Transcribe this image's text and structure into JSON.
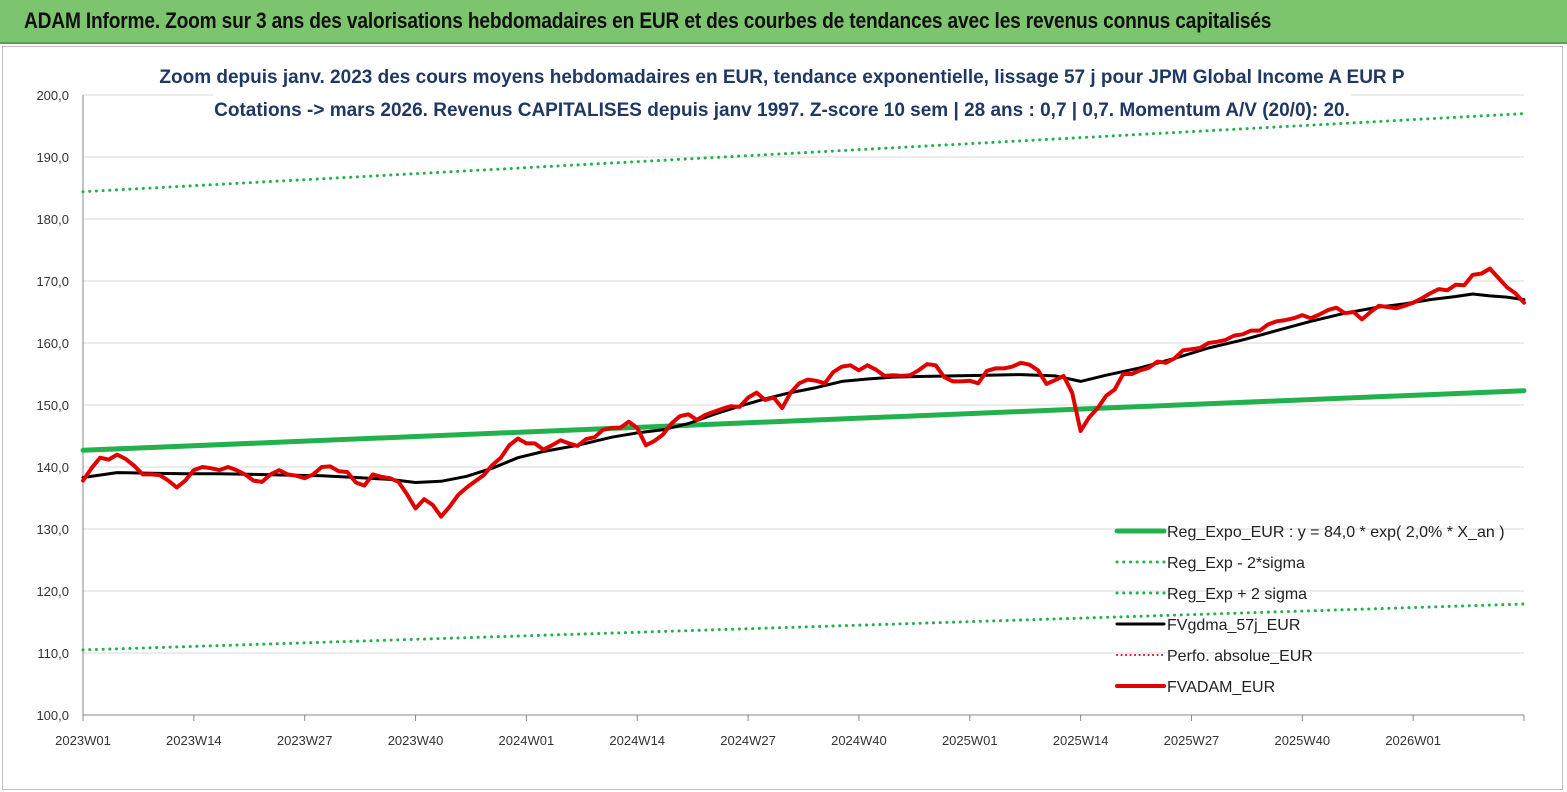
{
  "header": {
    "banner_title": "ADAM Informe. Zoom sur 3 ans des valorisations hebdomadaires en EUR et des courbes de tendances avec les revenus connus capitalisés"
  },
  "colors": {
    "banner_bg": "#7dc46f",
    "reg_expo": "#22b14c",
    "band": "#22b14c",
    "fvgdma": "#000000",
    "perfo": "#e00000",
    "fvadam": "#e00000",
    "title_text": "#1f3864"
  },
  "chart_data": {
    "type": "line",
    "title": "Zoom depuis janv. 2023 des cours moyens hebdomadaires en EUR, tendance exponentielle, lissage 57 j pour JPM Global Income A EUR P",
    "subtitle": "Cotations -> mars 2026. Revenus CAPITALISES depuis janv 1997. Z-score 10 sem | 28 ans : 0,7 | 0,7. Momentum A/V (20/0): 20.",
    "xlabel": "",
    "ylabel": "",
    "ylim": [
      100,
      200
    ],
    "yticks": [
      "100,0",
      "110,0",
      "120,0",
      "130,0",
      "140,0",
      "150,0",
      "160,0",
      "170,0",
      "180,0",
      "190,0",
      "200,0"
    ],
    "x_range_weeks": [
      0,
      169
    ],
    "x_ticks": [
      {
        "label": "2023W01",
        "week": 0
      },
      {
        "label": "2023W14",
        "week": 13
      },
      {
        "label": "2023W27",
        "week": 26
      },
      {
        "label": "2023W40",
        "week": 39
      },
      {
        "label": "2024W01",
        "week": 52
      },
      {
        "label": "2024W14",
        "week": 65
      },
      {
        "label": "2024W27",
        "week": 78
      },
      {
        "label": "2024W40",
        "week": 91
      },
      {
        "label": "2025W01",
        "week": 104
      },
      {
        "label": "2025W14",
        "week": 117
      },
      {
        "label": "2025W27",
        "week": 130
      },
      {
        "label": "2025W40",
        "week": 143
      },
      {
        "label": "2026W01",
        "week": 156
      }
    ],
    "grid": "horizontal",
    "legend_position": "bottom-right",
    "series": [
      {
        "name": "Reg_Expo_EUR : y = 84,0 * exp( 2,0% *  X_an )",
        "style": "solid",
        "color": "#22b14c",
        "width": 5,
        "points": [
          [
            0,
            142.7
          ],
          [
            169,
            152.3
          ]
        ]
      },
      {
        "name": "Reg_Exp - 2*sigma",
        "style": "dotted",
        "color": "#22b14c",
        "width": 3,
        "points": [
          [
            0,
            110.5
          ],
          [
            169,
            117.9
          ]
        ]
      },
      {
        "name": "Reg_Exp + 2 sigma",
        "style": "dotted",
        "color": "#22b14c",
        "width": 3,
        "points": [
          [
            0,
            184.4
          ],
          [
            169,
            197.0
          ]
        ]
      },
      {
        "name": "FVgdma_57j_EUR",
        "style": "solid",
        "color": "#000000",
        "width": 3,
        "points": [
          [
            0,
            138.3
          ],
          [
            4,
            139.1
          ],
          [
            8,
            139.0
          ],
          [
            12,
            138.9
          ],
          [
            16,
            138.9
          ],
          [
            20,
            138.8
          ],
          [
            24,
            138.7
          ],
          [
            28,
            138.6
          ],
          [
            32,
            138.3
          ],
          [
            36,
            138.0
          ],
          [
            39,
            137.5
          ],
          [
            42,
            137.7
          ],
          [
            45,
            138.5
          ],
          [
            48,
            139.8
          ],
          [
            51,
            141.5
          ],
          [
            54,
            142.5
          ],
          [
            58,
            143.5
          ],
          [
            62,
            144.8
          ],
          [
            65,
            145.5
          ],
          [
            68,
            146.0
          ],
          [
            71,
            147.0
          ],
          [
            74,
            148.5
          ],
          [
            77,
            149.8
          ],
          [
            80,
            151.0
          ],
          [
            83,
            152.0
          ],
          [
            86,
            152.8
          ],
          [
            89,
            153.8
          ],
          [
            92,
            154.2
          ],
          [
            95,
            154.5
          ],
          [
            98,
            154.6
          ],
          [
            102,
            154.7
          ],
          [
            106,
            154.8
          ],
          [
            110,
            154.9
          ],
          [
            114,
            154.7
          ],
          [
            117,
            153.8
          ],
          [
            120,
            154.8
          ],
          [
            124,
            156.0
          ],
          [
            128,
            157.5
          ],
          [
            132,
            159.2
          ],
          [
            136,
            160.5
          ],
          [
            140,
            162.0
          ],
          [
            144,
            163.5
          ],
          [
            148,
            164.8
          ],
          [
            152,
            165.8
          ],
          [
            155,
            166.3
          ],
          [
            158,
            167.0
          ],
          [
            161,
            167.5
          ],
          [
            163,
            167.9
          ],
          [
            165,
            167.6
          ],
          [
            167,
            167.4
          ],
          [
            169,
            167.0
          ]
        ]
      },
      {
        "name": "Perfo. absolue_EUR",
        "style": "dotted",
        "color": "#e00000",
        "width": 2,
        "points": []
      },
      {
        "name": "FVADAM_EUR",
        "style": "solid",
        "color": "#e00000",
        "width": 4,
        "points": [
          [
            0,
            137.8
          ],
          [
            1,
            139.8
          ],
          [
            2,
            141.5
          ],
          [
            3,
            141.2
          ],
          [
            4,
            142.0
          ],
          [
            5,
            141.3
          ],
          [
            6,
            140.2
          ],
          [
            7,
            138.8
          ],
          [
            8,
            138.8
          ],
          [
            9,
            138.7
          ],
          [
            10,
            137.8
          ],
          [
            11,
            136.7
          ],
          [
            12,
            137.8
          ],
          [
            13,
            139.5
          ],
          [
            14,
            140.0
          ],
          [
            15,
            139.8
          ],
          [
            16,
            139.5
          ],
          [
            17,
            140.0
          ],
          [
            18,
            139.5
          ],
          [
            19,
            138.8
          ],
          [
            20,
            137.8
          ],
          [
            21,
            137.6
          ],
          [
            22,
            138.8
          ],
          [
            23,
            139.5
          ],
          [
            24,
            138.8
          ],
          [
            25,
            138.6
          ],
          [
            26,
            138.2
          ],
          [
            27,
            138.8
          ],
          [
            28,
            140.0
          ],
          [
            29,
            140.1
          ],
          [
            30,
            139.3
          ],
          [
            31,
            139.2
          ],
          [
            32,
            137.5
          ],
          [
            33,
            137.0
          ],
          [
            34,
            138.8
          ],
          [
            35,
            138.4
          ],
          [
            36,
            138.2
          ],
          [
            37,
            137.6
          ],
          [
            38,
            135.6
          ],
          [
            39,
            133.3
          ],
          [
            40,
            134.8
          ],
          [
            41,
            133.9
          ],
          [
            42,
            132.0
          ],
          [
            43,
            133.6
          ],
          [
            44,
            135.5
          ],
          [
            45,
            136.7
          ],
          [
            46,
            137.7
          ],
          [
            47,
            138.7
          ],
          [
            48,
            140.3
          ],
          [
            49,
            141.5
          ],
          [
            50,
            143.5
          ],
          [
            51,
            144.6
          ],
          [
            52,
            143.8
          ],
          [
            53,
            143.8
          ],
          [
            54,
            142.8
          ],
          [
            55,
            143.5
          ],
          [
            56,
            144.3
          ],
          [
            57,
            143.8
          ],
          [
            58,
            143.4
          ],
          [
            59,
            144.5
          ],
          [
            60,
            144.8
          ],
          [
            61,
            146.0
          ],
          [
            62,
            146.3
          ],
          [
            63,
            146.3
          ],
          [
            64,
            147.3
          ],
          [
            65,
            146.3
          ],
          [
            66,
            143.5
          ],
          [
            67,
            144.2
          ],
          [
            68,
            145.2
          ],
          [
            69,
            147.0
          ],
          [
            70,
            148.2
          ],
          [
            71,
            148.5
          ],
          [
            72,
            147.6
          ],
          [
            73,
            148.4
          ],
          [
            74,
            148.9
          ],
          [
            75,
            149.4
          ],
          [
            76,
            149.8
          ],
          [
            77,
            149.7
          ],
          [
            78,
            151.2
          ],
          [
            79,
            152.0
          ],
          [
            80,
            150.8
          ],
          [
            81,
            151.2
          ],
          [
            82,
            149.5
          ],
          [
            83,
            152.0
          ],
          [
            84,
            153.5
          ],
          [
            85,
            154.1
          ],
          [
            86,
            153.9
          ],
          [
            87,
            153.5
          ],
          [
            88,
            155.3
          ],
          [
            89,
            156.2
          ],
          [
            90,
            156.4
          ],
          [
            91,
            155.6
          ],
          [
            92,
            156.4
          ],
          [
            93,
            155.7
          ],
          [
            94,
            154.7
          ],
          [
            95,
            154.8
          ],
          [
            96,
            154.7
          ],
          [
            97,
            154.8
          ],
          [
            98,
            155.6
          ],
          [
            99,
            156.6
          ],
          [
            100,
            156.4
          ],
          [
            101,
            154.5
          ],
          [
            102,
            153.8
          ],
          [
            103,
            153.8
          ],
          [
            104,
            153.9
          ],
          [
            105,
            153.5
          ],
          [
            106,
            155.5
          ],
          [
            107,
            155.9
          ],
          [
            108,
            155.9
          ],
          [
            109,
            156.2
          ],
          [
            110,
            156.8
          ],
          [
            111,
            156.5
          ],
          [
            112,
            155.6
          ],
          [
            113,
            153.4
          ],
          [
            114,
            154.0
          ],
          [
            115,
            154.7
          ],
          [
            116,
            152.0
          ],
          [
            117,
            145.8
          ],
          [
            118,
            148.0
          ],
          [
            119,
            149.5
          ],
          [
            120,
            151.5
          ],
          [
            121,
            152.5
          ],
          [
            122,
            155.0
          ],
          [
            123,
            155.0
          ],
          [
            124,
            155.6
          ],
          [
            125,
            156.0
          ],
          [
            126,
            157.0
          ],
          [
            127,
            156.8
          ],
          [
            128,
            157.5
          ],
          [
            129,
            158.8
          ],
          [
            130,
            159.0
          ],
          [
            131,
            159.2
          ],
          [
            132,
            160.0
          ],
          [
            133,
            160.2
          ],
          [
            134,
            160.5
          ],
          [
            135,
            161.2
          ],
          [
            136,
            161.4
          ],
          [
            137,
            162.0
          ],
          [
            138,
            162.0
          ],
          [
            139,
            163.0
          ],
          [
            140,
            163.5
          ],
          [
            141,
            163.7
          ],
          [
            142,
            164.0
          ],
          [
            143,
            164.5
          ],
          [
            144,
            164.0
          ],
          [
            145,
            164.6
          ],
          [
            146,
            165.3
          ],
          [
            147,
            165.7
          ],
          [
            148,
            164.8
          ],
          [
            149,
            165.0
          ],
          [
            150,
            163.8
          ],
          [
            151,
            165.0
          ],
          [
            152,
            166.0
          ],
          [
            153,
            165.8
          ],
          [
            154,
            165.6
          ],
          [
            155,
            166.0
          ],
          [
            156,
            166.5
          ],
          [
            157,
            167.2
          ],
          [
            158,
            168.0
          ],
          [
            159,
            168.7
          ],
          [
            160,
            168.5
          ],
          [
            161,
            169.4
          ],
          [
            162,
            169.3
          ],
          [
            163,
            171.0
          ],
          [
            164,
            171.2
          ],
          [
            165,
            172.0
          ],
          [
            166,
            170.5
          ],
          [
            167,
            169.0
          ],
          [
            168,
            168.0
          ],
          [
            169,
            166.5
          ]
        ]
      }
    ]
  }
}
